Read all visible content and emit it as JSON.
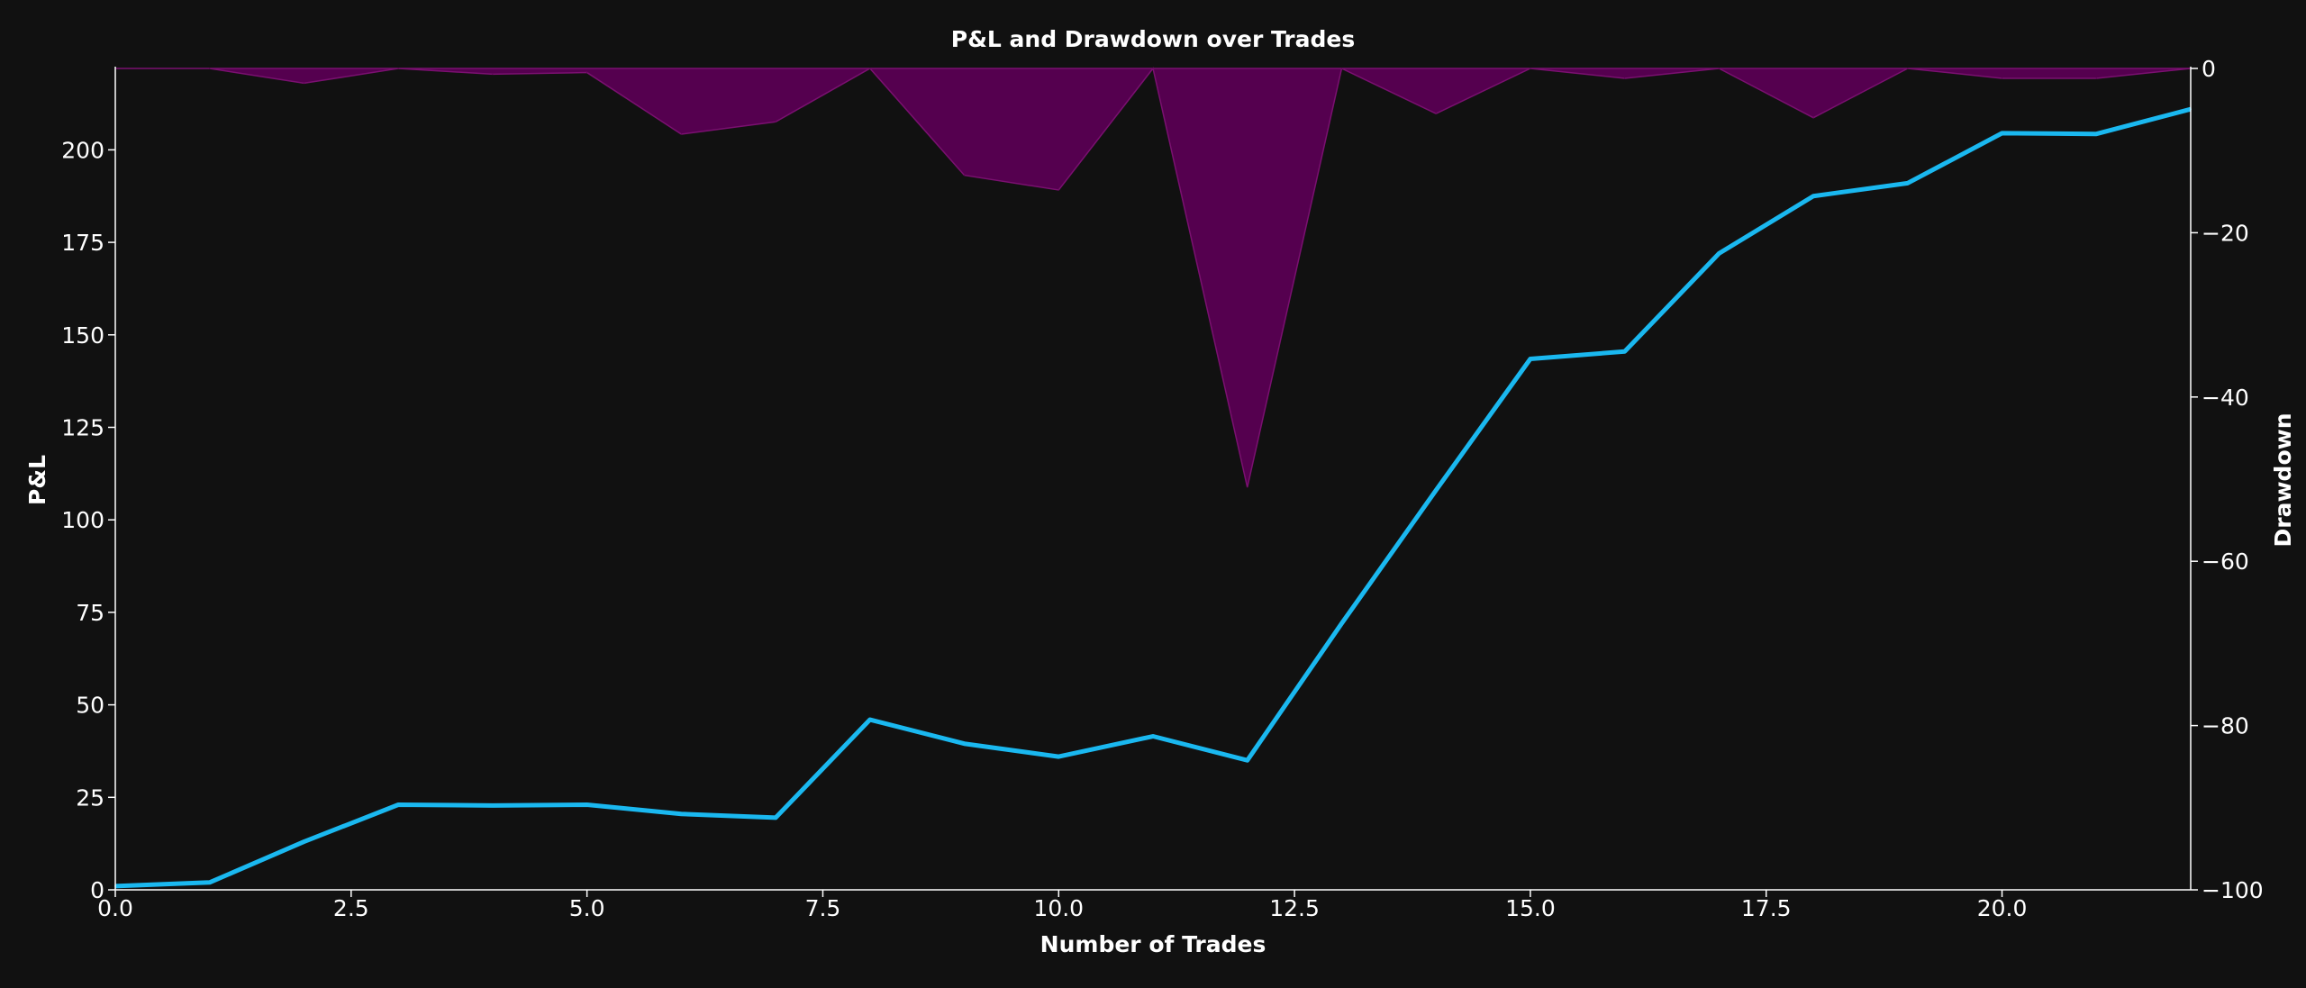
{
  "chart_data": {
    "type": "line",
    "title": "P&L and Drawdown over Trades",
    "xlabel": "Number of Trades",
    "ylabel": "P&L",
    "y2label": "Drawdown",
    "xlim": [
      0,
      22
    ],
    "ylim": [
      0,
      222
    ],
    "y2lim": [
      -100,
      0
    ],
    "x_ticks": [
      0,
      2.5,
      5,
      7.5,
      10,
      12.5,
      15,
      17.5,
      20
    ],
    "x_tick_labels": [
      "0.0",
      "2.5",
      "5.0",
      "7.5",
      "10.0",
      "12.5",
      "15.0",
      "17.5",
      "20.0"
    ],
    "y_ticks": [
      0,
      25,
      50,
      75,
      100,
      125,
      150,
      175,
      200
    ],
    "y_tick_labels": [
      "0",
      "25",
      "50",
      "75",
      "100",
      "125",
      "150",
      "175",
      "200"
    ],
    "y2_ticks": [
      0,
      -20,
      -40,
      -60,
      -80,
      -100
    ],
    "y2_tick_labels": [
      "0",
      "−20",
      "−40",
      "−60",
      "−80",
      "−100"
    ],
    "grid": false,
    "series": [
      {
        "kind": "line",
        "axis": "left",
        "color": "#1ab8f0",
        "x": [
          0,
          1,
          2,
          3,
          4,
          5,
          6,
          7,
          8,
          9,
          10,
          11,
          12,
          13,
          14,
          15,
          16,
          17,
          18,
          19,
          20,
          21,
          22
        ],
        "values": [
          1,
          2,
          13,
          23,
          22.8,
          23,
          20.5,
          19.5,
          46,
          39.5,
          36,
          41.5,
          35,
          72,
          108,
          143.5,
          145.5,
          172,
          187.5,
          191,
          204.5,
          204.3,
          211
        ]
      },
      {
        "kind": "area",
        "axis": "right",
        "color": "#55004f",
        "x": [
          0,
          1,
          2,
          3,
          4,
          5,
          6,
          7,
          8,
          9,
          10,
          11,
          12,
          13,
          14,
          15,
          16,
          17,
          18,
          19,
          20,
          21,
          22
        ],
        "values": [
          0,
          0,
          -1.8,
          0,
          -0.7,
          -0.5,
          -8,
          -6.5,
          0,
          -13,
          -14.8,
          0,
          -51,
          0,
          -5.5,
          0,
          -1.2,
          0,
          -6,
          0,
          -1.2,
          -1.2,
          0
        ]
      }
    ]
  }
}
